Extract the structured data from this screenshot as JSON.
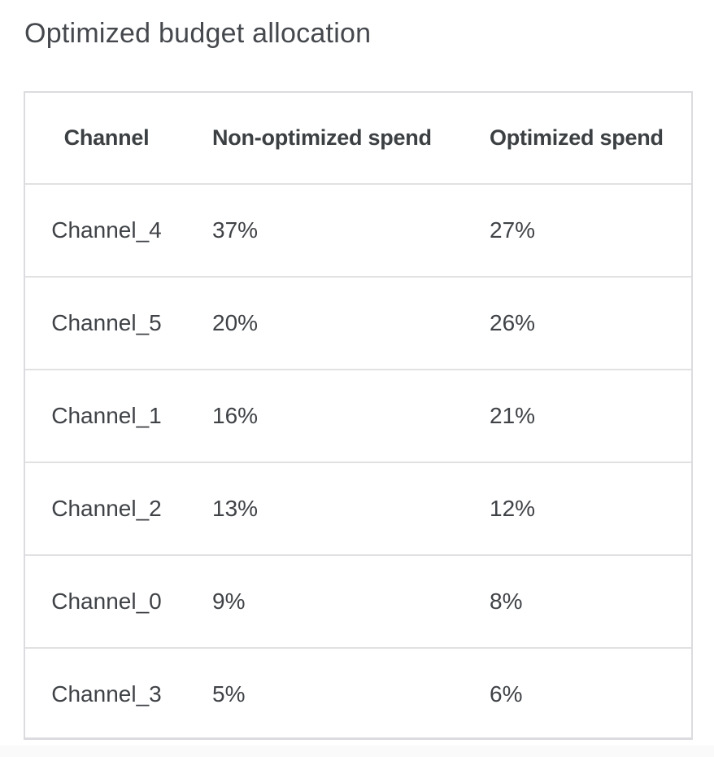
{
  "page": {
    "title": "Optimized budget allocation"
  },
  "table": {
    "columns": [
      "Channel",
      "Non-optimized spend",
      "Optimized spend"
    ],
    "rows": [
      [
        "Channel_4",
        "37%",
        "27%"
      ],
      [
        "Channel_5",
        "20%",
        "26%"
      ],
      [
        "Channel_1",
        "16%",
        "21%"
      ],
      [
        "Channel_2",
        "13%",
        "12%"
      ],
      [
        "Channel_0",
        "9%",
        "8%"
      ],
      [
        "Channel_3",
        "5%",
        "6%"
      ]
    ]
  },
  "chart_data": {
    "type": "table",
    "title": "Optimized budget allocation",
    "categories": [
      "Channel_4",
      "Channel_5",
      "Channel_1",
      "Channel_2",
      "Channel_0",
      "Channel_3"
    ],
    "series": [
      {
        "name": "Non-optimized spend",
        "values": [
          37,
          20,
          16,
          13,
          9,
          5
        ],
        "unit": "%"
      },
      {
        "name": "Optimized spend",
        "values": [
          27,
          26,
          21,
          12,
          8,
          6
        ],
        "unit": "%"
      }
    ]
  },
  "colors": {
    "title_text": "#45484d",
    "header_text": "#3c4043",
    "cell_text": "#3f4246",
    "outer_border": "#dcdce0",
    "row_divider": "#e1e1e4",
    "background": "#ffffff"
  }
}
